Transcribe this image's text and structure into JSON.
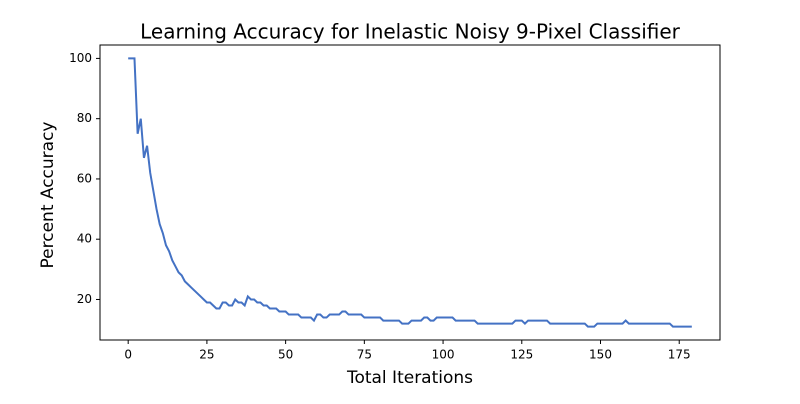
{
  "chart_data": {
    "type": "line",
    "title": "Learning Accuracy for Inelastic Noisy 9-Pixel Classifier",
    "x_label": "Total Iterations",
    "y_label": "Percent Accuracy",
    "x": [
      0,
      1,
      2,
      3,
      4,
      5,
      6,
      7,
      8,
      9,
      10,
      11,
      12,
      13,
      14,
      15,
      16,
      17,
      18,
      19,
      20,
      21,
      22,
      23,
      24,
      25,
      26,
      27,
      28,
      29,
      30,
      31,
      32,
      33,
      34,
      35,
      36,
      37,
      38,
      39,
      40,
      41,
      42,
      43,
      44,
      45,
      46,
      47,
      48,
      49,
      50,
      51,
      52,
      53,
      54,
      55,
      56,
      57,
      58,
      59,
      60,
      61,
      62,
      63,
      64,
      65,
      66,
      67,
      68,
      69,
      70,
      71,
      72,
      73,
      74,
      75,
      76,
      77,
      78,
      79,
      80,
      81,
      82,
      83,
      84,
      85,
      86,
      87,
      88,
      89,
      90,
      91,
      92,
      93,
      94,
      95,
      96,
      97,
      98,
      99,
      100,
      101,
      102,
      103,
      104,
      105,
      106,
      107,
      108,
      109,
      110,
      111,
      112,
      113,
      114,
      115,
      116,
      117,
      118,
      119,
      120,
      121,
      122,
      123,
      124,
      125,
      126,
      127,
      128,
      129,
      130,
      131,
      132,
      133,
      134,
      135,
      136,
      137,
      138,
      139,
      140,
      141,
      142,
      143,
      144,
      145,
      146,
      147,
      148,
      149,
      150,
      151,
      152,
      153,
      154,
      155,
      156,
      157,
      158,
      159,
      160,
      161,
      162,
      163,
      164,
      165,
      166,
      167,
      168,
      169,
      170,
      171,
      172,
      173,
      174,
      175,
      176,
      177,
      178,
      179
    ],
    "series": [
      {
        "name": "accuracy",
        "color": "#4472c4",
        "values": [
          100,
          100,
          100,
          75,
          80,
          67,
          71,
          62,
          56,
          50,
          45,
          42,
          38,
          36,
          33,
          31,
          29,
          28,
          26,
          25,
          24,
          23,
          22,
          21,
          20,
          19,
          19,
          18,
          17,
          17,
          19,
          19,
          18,
          18,
          20,
          19,
          19,
          18,
          21,
          20,
          20,
          19,
          19,
          18,
          18,
          17,
          17,
          17,
          16,
          16,
          16,
          15,
          15,
          15,
          15,
          14,
          14,
          14,
          14,
          13,
          15,
          15,
          14,
          14,
          15,
          15,
          15,
          15,
          16,
          16,
          15,
          15,
          15,
          15,
          15,
          14,
          14,
          14,
          14,
          14,
          14,
          13,
          13,
          13,
          13,
          13,
          13,
          12,
          12,
          12,
          13,
          13,
          13,
          13,
          14,
          14,
          13,
          13,
          14,
          14,
          14,
          14,
          14,
          14,
          13,
          13,
          13,
          13,
          13,
          13,
          13,
          12,
          12,
          12,
          12,
          12,
          12,
          12,
          12,
          12,
          12,
          12,
          12,
          13,
          13,
          13,
          12,
          13,
          13,
          13,
          13,
          13,
          13,
          13,
          12,
          12,
          12,
          12,
          12,
          12,
          12,
          12,
          12,
          12,
          12,
          12,
          11,
          11,
          11,
          12,
          12,
          12,
          12,
          12,
          12,
          12,
          12,
          12,
          13,
          12,
          12,
          12,
          12,
          12,
          12,
          12,
          12,
          12,
          12,
          12,
          12,
          12,
          12,
          11,
          11,
          11,
          11,
          11,
          11,
          11
        ]
      }
    ],
    "xlim": [
      -8.95,
      187.95
    ],
    "ylim": [
      6.55,
      104.45
    ],
    "xticks": [
      0,
      25,
      50,
      75,
      100,
      125,
      150,
      175
    ],
    "yticks": [
      20,
      40,
      60,
      80,
      100
    ]
  }
}
